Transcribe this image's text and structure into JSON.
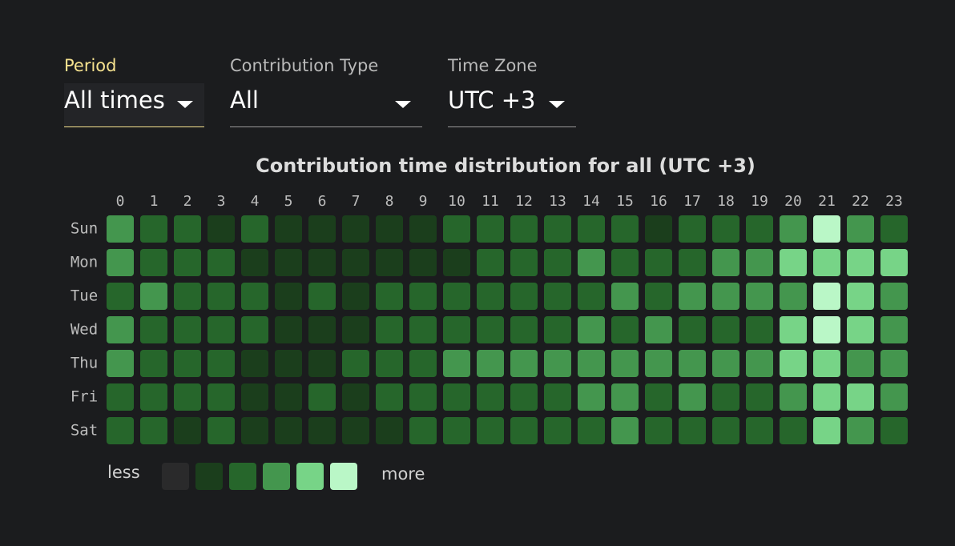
{
  "filters": [
    {
      "label": "Period",
      "value": "All times"
    },
    {
      "label": "Contribution Type",
      "value": "All"
    },
    {
      "label": "Time Zone",
      "value": "UTC +3"
    }
  ],
  "heatmap": {
    "title": "Contribution time distribution for all (UTC +3)",
    "hours": [
      0,
      1,
      2,
      3,
      4,
      5,
      6,
      7,
      8,
      9,
      10,
      11,
      12,
      13,
      14,
      15,
      16,
      17,
      18,
      19,
      20,
      21,
      22,
      23
    ],
    "days": [
      "Sun",
      "Mon",
      "Tue",
      "Wed",
      "Thu",
      "Fri",
      "Sat"
    ],
    "colors": [
      "#2a2a2b",
      "#1b3e1c",
      "#26662b",
      "#44964e",
      "#77d487",
      "#baf7c7"
    ],
    "cells": [
      [
        3,
        2,
        2,
        1,
        2,
        1,
        1,
        1,
        1,
        1,
        2,
        2,
        2,
        2,
        2,
        2,
        1,
        2,
        2,
        2,
        3,
        5,
        3,
        2
      ],
      [
        3,
        2,
        2,
        2,
        1,
        1,
        1,
        1,
        1,
        1,
        1,
        2,
        2,
        2,
        3,
        2,
        2,
        2,
        3,
        3,
        4,
        4,
        4,
        4
      ],
      [
        2,
        3,
        2,
        2,
        2,
        1,
        2,
        1,
        2,
        2,
        2,
        2,
        2,
        2,
        2,
        3,
        2,
        3,
        3,
        3,
        3,
        5,
        4,
        3
      ],
      [
        3,
        2,
        2,
        2,
        2,
        1,
        1,
        1,
        2,
        2,
        2,
        2,
        2,
        2,
        3,
        2,
        3,
        2,
        2,
        2,
        4,
        5,
        4,
        3
      ],
      [
        3,
        2,
        2,
        2,
        1,
        1,
        1,
        2,
        2,
        2,
        3,
        3,
        3,
        3,
        3,
        3,
        3,
        3,
        3,
        3,
        4,
        4,
        3,
        3
      ],
      [
        2,
        2,
        2,
        2,
        1,
        1,
        2,
        1,
        2,
        2,
        2,
        2,
        2,
        2,
        3,
        3,
        2,
        3,
        2,
        2,
        3,
        4,
        4,
        3
      ],
      [
        2,
        2,
        1,
        2,
        1,
        1,
        1,
        1,
        1,
        2,
        2,
        2,
        2,
        2,
        2,
        3,
        2,
        2,
        2,
        2,
        2,
        4,
        3,
        2
      ]
    ],
    "legend": {
      "less": "less",
      "more": "more"
    }
  }
}
